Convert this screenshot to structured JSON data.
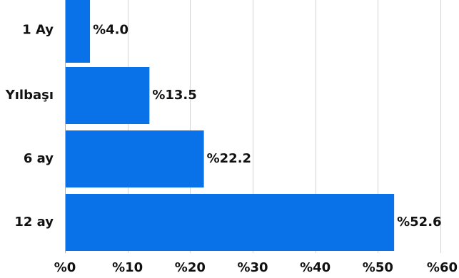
{
  "chart_data": {
    "type": "bar",
    "orientation": "horizontal",
    "categories": [
      "1 Ay",
      "Yılbaşı",
      "6 ay",
      "12 ay"
    ],
    "values": [
      4.0,
      13.5,
      22.2,
      52.6
    ],
    "value_labels": [
      "%4.0",
      "%13.5",
      "%22.2",
      "%52.6"
    ],
    "xlim": [
      0,
      60
    ],
    "x_ticks": [
      0,
      10,
      20,
      30,
      40,
      50,
      60
    ],
    "x_tick_labels": [
      "%0",
      "%10",
      "%20",
      "%30",
      "%40",
      "%50",
      "%60"
    ],
    "title": "",
    "xlabel": "",
    "ylabel": "",
    "grid": true,
    "bar_color": "#0a72e8"
  }
}
